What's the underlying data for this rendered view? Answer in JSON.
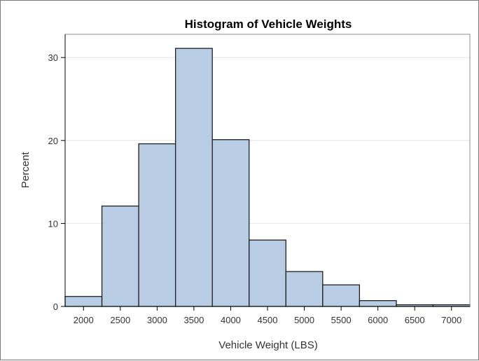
{
  "chart_data": {
    "type": "bar",
    "title": "Histogram of Vehicle Weights",
    "xlabel": "Vehicle Weight (LBS)",
    "ylabel": "Percent",
    "bin_width": 500,
    "bins": [
      {
        "center": 2000,
        "value": 1.2
      },
      {
        "center": 2500,
        "value": 12.1
      },
      {
        "center": 3000,
        "value": 19.6
      },
      {
        "center": 3500,
        "value": 31.1
      },
      {
        "center": 4000,
        "value": 20.1
      },
      {
        "center": 4500,
        "value": 8.0
      },
      {
        "center": 5000,
        "value": 4.2
      },
      {
        "center": 5500,
        "value": 2.6
      },
      {
        "center": 6000,
        "value": 0.7
      },
      {
        "center": 6500,
        "value": 0.2
      },
      {
        "center": 7000,
        "value": 0.2
      }
    ],
    "x_ticks": [
      "2000",
      "2500",
      "3000",
      "3500",
      "4000",
      "4500",
      "5000",
      "5500",
      "6000",
      "6500",
      "7000"
    ],
    "y_ticks": [
      "0",
      "10",
      "20",
      "30"
    ],
    "xlim": [
      1750,
      7250
    ],
    "ylim": [
      0,
      32.8
    ],
    "grid": true,
    "colors": {
      "bar_fill": "#b8cce4",
      "bar_stroke": "#1f1f1f",
      "grid": "#e6e6e6"
    }
  }
}
